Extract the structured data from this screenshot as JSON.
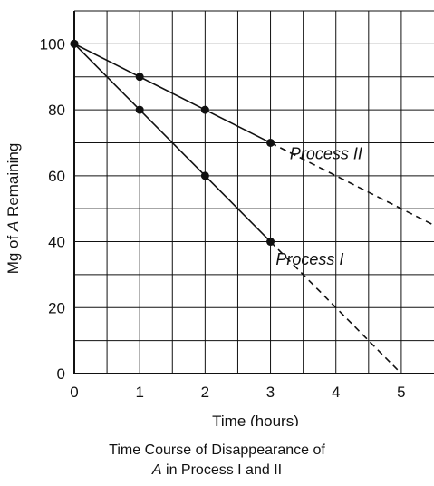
{
  "chart_data": {
    "type": "line",
    "xlabel": "Time (hours)",
    "ylabel_prefix": "Mg of ",
    "ylabel_italic": "A",
    "ylabel_suffix": " Remaining",
    "xlim": [
      0,
      5.5
    ],
    "ylim": [
      0,
      110
    ],
    "grid": true,
    "x_ticks": [
      "0",
      "1",
      "2",
      "3",
      "4",
      "5"
    ],
    "y_ticks": [
      "0",
      "20",
      "40",
      "60",
      "80",
      "100"
    ],
    "series": [
      {
        "name": "Process I",
        "x": [
          0,
          1,
          2,
          3
        ],
        "y": [
          100,
          80,
          60,
          40
        ],
        "extrapolated": {
          "x": [
            3,
            5
          ],
          "y": [
            40,
            0
          ]
        }
      },
      {
        "name": "Process II",
        "x": [
          0,
          1,
          2,
          3
        ],
        "y": [
          100,
          90,
          80,
          70
        ],
        "extrapolated": {
          "x": [
            3,
            5.5
          ],
          "y": [
            70,
            45
          ]
        }
      }
    ]
  },
  "caption": {
    "line1": "Time Course of Disappearance of",
    "line2_italic": "A",
    "line2_rest": " in Process I and II"
  }
}
